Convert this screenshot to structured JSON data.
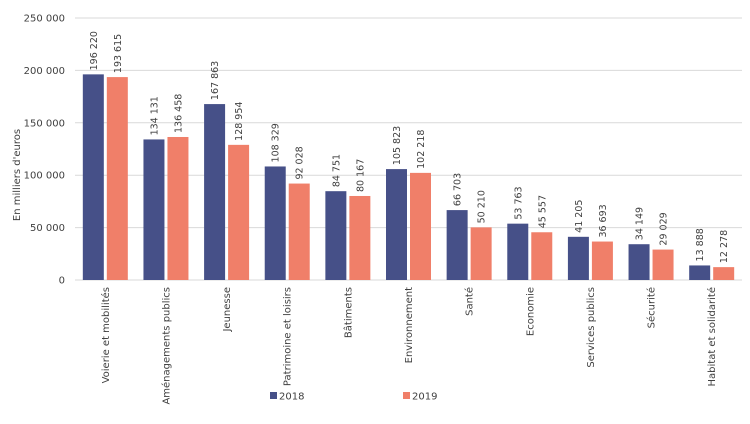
{
  "chart_data": {
    "type": "bar",
    "title": "",
    "xlabel": "",
    "ylabel": "En milliers d'euros",
    "ylim": [
      0,
      250000
    ],
    "yticks": [
      0,
      50000,
      100000,
      150000,
      200000,
      250000
    ],
    "ytick_labels": [
      "0",
      "50 000",
      "100 000",
      "150 000",
      "200 000",
      "250 000"
    ],
    "grid": true,
    "legend_position": "bottom",
    "categories": [
      "Voierie et mobilités",
      "Aménagements publics",
      "Jeunesse",
      "Patrimoine et loisirs",
      "Bâtiments",
      "Environnement",
      "Santé",
      "Economie",
      "Services publics",
      "Sécurité",
      "Habitat et solidarité"
    ],
    "series": [
      {
        "name": "2018",
        "color": "#465088",
        "values": [
          196220,
          134131,
          167863,
          108329,
          84751,
          105823,
          66703,
          53763,
          41205,
          34149,
          13888
        ],
        "labels": [
          "196 220",
          "134 131",
          "167 863",
          "108 329",
          "84 751",
          "105 823",
          "66 703",
          "53 763",
          "41 205",
          "34 149",
          "13 888"
        ]
      },
      {
        "name": "2019",
        "color": "#f07f69",
        "values": [
          193615,
          136458,
          128954,
          92028,
          80167,
          102218,
          50210,
          45557,
          36693,
          29029,
          12278
        ],
        "labels": [
          "193 615",
          "136 458",
          "128 954",
          "92 028",
          "80 167",
          "102 218",
          "50 210",
          "45 557",
          "36 693",
          "29 029",
          "12 278"
        ]
      }
    ]
  }
}
